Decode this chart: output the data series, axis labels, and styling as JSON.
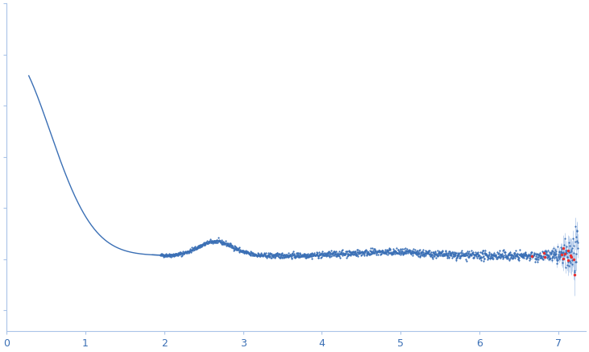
{
  "title": "",
  "xlabel": "",
  "ylabel": "",
  "xlim": [
    0,
    7.35
  ],
  "dot_color": "#3a6fb5",
  "dot_color_outlier": "#e83030",
  "error_color": "#aac4e8",
  "dot_size": 2.5,
  "line_color": "#3a6fb5",
  "line_width": 1.0,
  "background_color": "#ffffff",
  "spine_color": "#aac4e8",
  "tick_color": "#aac4e8",
  "tick_label_color": "#3a6fb5",
  "seed": 42,
  "peak_value": 1.0,
  "ylim": [
    -0.35,
    1.25
  ]
}
